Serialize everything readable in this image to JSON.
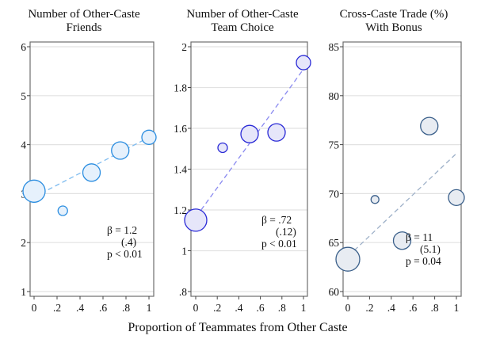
{
  "figure": {
    "xlabel": "Proportion of Teammates from Other Caste"
  },
  "chart_data": [
    {
      "type": "scatter",
      "title": "Number of Other-Caste Friends",
      "title_lines": [
        "Number of Other-Caste",
        "Friends"
      ],
      "xlabel": "Proportion of Teammates from Other Caste",
      "ylabel": "",
      "xlim": [
        0,
        1
      ],
      "ylim": [
        1,
        6
      ],
      "xticks": [
        0,
        0.2,
        0.4,
        0.6,
        0.8,
        1
      ],
      "xtick_labels": [
        "0",
        ".2",
        ".4",
        ".6",
        ".8",
        "1"
      ],
      "yticks": [
        1,
        2,
        3,
        4,
        5,
        6
      ],
      "ytick_labels": [
        "1",
        "2",
        "3",
        "4",
        "5",
        "6"
      ],
      "grid": true,
      "points": [
        {
          "x": 0,
          "y": 3.05,
          "size": 14
        },
        {
          "x": 0.25,
          "y": 2.65,
          "size": 6
        },
        {
          "x": 0.5,
          "y": 3.43,
          "size": 11
        },
        {
          "x": 0.75,
          "y": 3.88,
          "size": 11
        },
        {
          "x": 1,
          "y": 4.15,
          "size": 9
        }
      ],
      "fit_line": {
        "x": [
          0,
          1
        ],
        "y": [
          2.93,
          4.15
        ]
      },
      "annotation": [
        "β = 1.2",
        "(.4)",
        "p < 0.01"
      ],
      "colors": {
        "stroke": "#2a8de0",
        "fill": "#e6f1fc",
        "line": "#7fbcf0"
      }
    },
    {
      "type": "scatter",
      "title": "Number of Other-Caste Team Choice",
      "title_lines": [
        "Number of Other-Caste",
        "Team Choice"
      ],
      "xlabel": "Proportion of Teammates from Other Caste",
      "ylabel": "",
      "xlim": [
        0,
        1
      ],
      "ylim": [
        0.8,
        2
      ],
      "xticks": [
        0,
        0.2,
        0.4,
        0.6,
        0.8,
        1
      ],
      "xtick_labels": [
        "0",
        ".2",
        ".4",
        ".6",
        ".8",
        "1"
      ],
      "yticks": [
        0.8,
        1,
        1.2,
        1.4,
        1.6,
        1.8,
        2
      ],
      "ytick_labels": [
        ".8",
        "1",
        "1.2",
        "1.4",
        "1.6",
        "1.8",
        "2"
      ],
      "grid": true,
      "points": [
        {
          "x": 0,
          "y": 1.15,
          "size": 14
        },
        {
          "x": 0.25,
          "y": 1.505,
          "size": 6
        },
        {
          "x": 0.5,
          "y": 1.572,
          "size": 11
        },
        {
          "x": 0.75,
          "y": 1.58,
          "size": 11
        },
        {
          "x": 1,
          "y": 1.922,
          "size": 9
        }
      ],
      "fit_line": {
        "x": [
          0.05,
          1
        ],
        "y": [
          1.2,
          1.89
        ]
      },
      "annotation": [
        "β = .72",
        "(.12)",
        "p < 0.01"
      ],
      "colors": {
        "stroke": "#2a2ad6",
        "fill": "#e6e6fa",
        "line": "#8a8af0"
      }
    },
    {
      "type": "scatter",
      "title": "Cross-Caste Trade (%) With Bonus",
      "title_lines": [
        "Cross-Caste Trade (%)",
        "With Bonus"
      ],
      "xlabel": "Proportion of Teammates from Other Caste",
      "ylabel": "",
      "xlim": [
        0,
        1
      ],
      "ylim": [
        60,
        85
      ],
      "xticks": [
        0,
        0.2,
        0.4,
        0.6,
        0.8,
        1
      ],
      "xtick_labels": [
        "0",
        ".2",
        ".4",
        ".6",
        ".8",
        "1"
      ],
      "yticks": [
        60,
        65,
        70,
        75,
        80,
        85
      ],
      "ytick_labels": [
        "60",
        "65",
        "70",
        "75",
        "80",
        "85"
      ],
      "grid": true,
      "points": [
        {
          "x": 0,
          "y": 63.3,
          "size": 15
        },
        {
          "x": 0.25,
          "y": 69.4,
          "size": 5
        },
        {
          "x": 0.5,
          "y": 65.2,
          "size": 11
        },
        {
          "x": 0.75,
          "y": 76.9,
          "size": 11
        },
        {
          "x": 1,
          "y": 69.6,
          "size": 10
        }
      ],
      "fit_line": {
        "x": [
          0.06,
          1
        ],
        "y": [
          64.2,
          74.1
        ]
      },
      "annotation": [
        "β = 11",
        "(5.1)",
        "p = 0.04"
      ],
      "colors": {
        "stroke": "#3a5f8a",
        "fill": "#e8ecf2",
        "line": "#9db0c8"
      }
    }
  ]
}
